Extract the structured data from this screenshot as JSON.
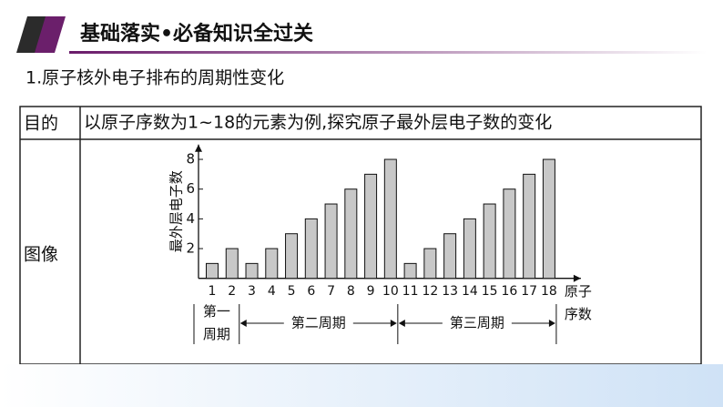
{
  "header": {
    "title": "基础落实•必备知识全过关"
  },
  "section": {
    "title": "1.原子核外电子排布的周期性变化"
  },
  "table": {
    "rows": [
      [
        "目的",
        "以原子序数为1~18的元素为例,探究原子最外层电子数的变化"
      ],
      [
        "图像"
      ]
    ]
  },
  "chart_data": {
    "type": "bar",
    "y_label": "最外层电子数",
    "x_label": "原子序数",
    "categories": [
      "1",
      "2",
      "3",
      "4",
      "5",
      "6",
      "7",
      "8",
      "9",
      "10",
      "11",
      "12",
      "13",
      "14",
      "15",
      "16",
      "17",
      "18"
    ],
    "values": [
      1,
      2,
      1,
      2,
      3,
      4,
      5,
      6,
      7,
      8,
      1,
      2,
      3,
      4,
      5,
      6,
      7,
      8
    ],
    "color": "#c8c8c8",
    "ylim": [
      0,
      9
    ],
    "yticks": [
      2,
      4,
      6,
      8
    ],
    "periods": [
      "第一周期",
      "第二周期",
      "第三周期"
    ]
  }
}
